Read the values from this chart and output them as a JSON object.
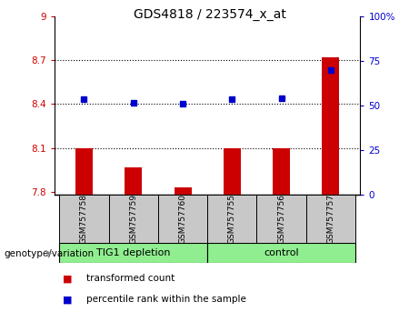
{
  "title": "GDS4818 / 223574_x_at",
  "categories": [
    "GSM757758",
    "GSM757759",
    "GSM757760",
    "GSM757755",
    "GSM757756",
    "GSM757757"
  ],
  "red_values": [
    8.1,
    7.97,
    7.83,
    8.1,
    8.1,
    8.72
  ],
  "blue_values": [
    8.43,
    8.41,
    8.4,
    8.43,
    8.44,
    8.63
  ],
  "ylim_left": [
    7.78,
    9.0
  ],
  "ylim_right": [
    0,
    100
  ],
  "yticks_left": [
    7.8,
    8.1,
    8.4,
    8.7,
    9.0
  ],
  "yticks_right": [
    0,
    25,
    50,
    75,
    100
  ],
  "ytick_labels_left": [
    "7.8",
    "8.1",
    "8.4",
    "8.7",
    "9"
  ],
  "ytick_labels_right": [
    "0",
    "25",
    "50",
    "75",
    "100%"
  ],
  "left_tick_color": "#cc0000",
  "right_tick_color": "#0000cc",
  "bar_color": "#cc0000",
  "dot_color": "#0000cc",
  "bar_bottom": 7.78,
  "hlines": [
    8.1,
    8.4,
    8.7
  ],
  "groups": [
    {
      "label": "TIG1 depletion",
      "start": 0,
      "end": 3,
      "color": "#90ee90"
    },
    {
      "label": "control",
      "start": 3,
      "end": 6,
      "color": "#90ee90"
    }
  ],
  "group_label": "genotype/variation",
  "legend_items": [
    {
      "color": "#cc0000",
      "label": "transformed count"
    },
    {
      "color": "#0000cc",
      "label": "percentile rank within the sample"
    }
  ],
  "xticklabel_box_color": "#c8c8c8",
  "bar_width": 0.35
}
